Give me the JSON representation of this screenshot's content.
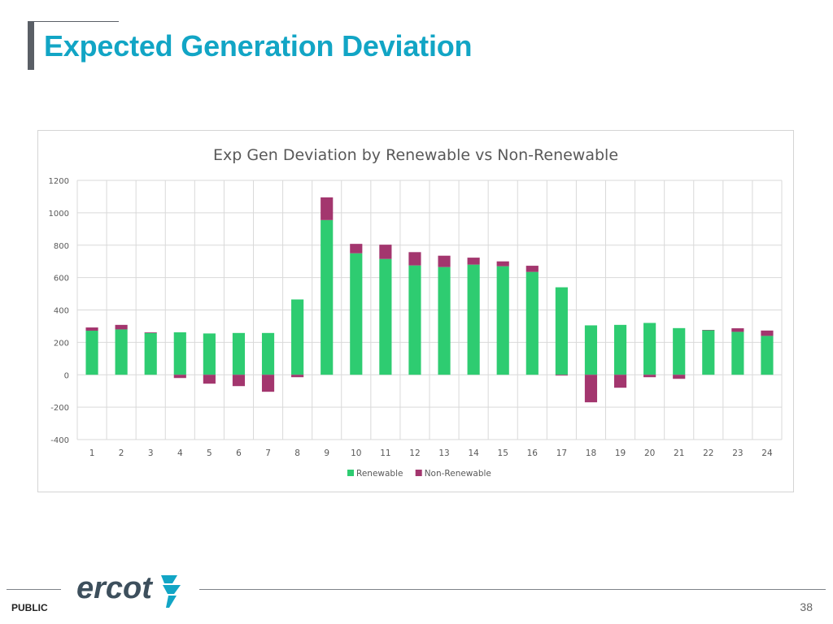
{
  "page": {
    "title": "Expected Generation Deviation",
    "classification": "PUBLIC",
    "page_number": "38",
    "logo_text": "ercot"
  },
  "colors": {
    "title": "#12a5c5",
    "renewable": "#2ecc71",
    "non_renewable": "#a3366e",
    "grid": "#d9d9d9",
    "axis_text": "#595959"
  },
  "chart_data": {
    "type": "bar",
    "stacked": true,
    "title": "Exp Gen Deviation by Renewable vs Non-Renewable",
    "xlabel": "",
    "ylabel": "",
    "ylim": [
      -400,
      1200
    ],
    "yticks": [
      1200,
      1000,
      800,
      600,
      400,
      200,
      0,
      -200,
      -400
    ],
    "grid": true,
    "legend_position": "bottom",
    "categories": [
      "1",
      "2",
      "3",
      "4",
      "5",
      "6",
      "7",
      "8",
      "9",
      "10",
      "11",
      "12",
      "13",
      "14",
      "15",
      "16",
      "17",
      "18",
      "19",
      "20",
      "21",
      "22",
      "23",
      "24"
    ],
    "series": [
      {
        "name": "Renewable",
        "color": "#2ecc71",
        "values": [
          272,
          280,
          258,
          262,
          255,
          258,
          258,
          465,
          955,
          750,
          715,
          675,
          665,
          680,
          670,
          635,
          540,
          305,
          308,
          320,
          288,
          275,
          265,
          240
        ]
      },
      {
        "name": "Non-Renewable",
        "color": "#a3366e",
        "values": [
          20,
          28,
          4,
          -20,
          -55,
          -70,
          -105,
          -15,
          140,
          58,
          88,
          82,
          70,
          43,
          30,
          38,
          -5,
          -170,
          -80,
          -15,
          -25,
          2,
          22,
          33
        ]
      }
    ]
  }
}
